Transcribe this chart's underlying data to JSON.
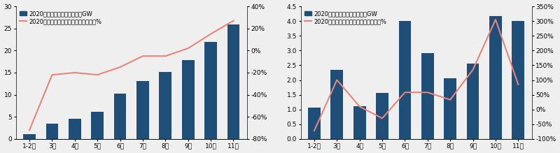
{
  "left": {
    "categories": [
      "1-2月",
      "3月",
      "4月",
      "5月",
      "6月",
      "7月",
      "8月",
      "9月",
      "10月",
      "11月"
    ],
    "bar_values": [
      1.1,
      3.5,
      4.5,
      6.1,
      10.2,
      13.1,
      15.1,
      17.8,
      22.0,
      25.9
    ],
    "line_values": [
      -0.72,
      -0.22,
      -0.2,
      -0.22,
      -0.15,
      -0.05,
      -0.05,
      0.02,
      0.15,
      0.27
    ],
    "bar_color": "#1F4E79",
    "line_color": "#E8857A",
    "bar_legend": "2020年光伏新增累计装机量，GW",
    "line_legend": "2020年光伏新增累计装机量同比增速，%",
    "ylim_bar": [
      0,
      30
    ],
    "ylim_line": [
      -0.8,
      0.4
    ],
    "yticks_bar": [
      0,
      5,
      10,
      15,
      20,
      25,
      30
    ],
    "yticks_line": [
      -0.8,
      -0.6,
      -0.4,
      -0.2,
      0.0,
      0.2,
      0.4
    ],
    "ytick_labels_line": [
      "-80%",
      "-60%",
      "-40%",
      "-20%",
      "0%",
      "20%",
      "40%"
    ]
  },
  "right": {
    "categories": [
      "1-2月",
      "3月",
      "4月",
      "5月",
      "6月",
      "7月",
      "8月",
      "9月",
      "10月",
      "11月"
    ],
    "bar_values": [
      1.07,
      2.35,
      1.12,
      1.57,
      4.0,
      2.92,
      2.07,
      2.55,
      4.18,
      4.0
    ],
    "line_values": [
      -0.72,
      1.0,
      0.1,
      -0.3,
      0.58,
      0.58,
      0.33,
      1.35,
      3.05,
      0.85
    ],
    "bar_color": "#1F4E79",
    "line_color": "#E8857A",
    "bar_legend": "2020年光伏每月新增装机量，GW",
    "line_legend": "2020年光伏每月新增装机量同比增速，%",
    "ylim_bar": [
      0,
      4.5
    ],
    "ylim_line": [
      -1.0,
      3.5
    ],
    "yticks_bar": [
      0,
      0.5,
      1.0,
      1.5,
      2.0,
      2.5,
      3.0,
      3.5,
      4.0,
      4.5
    ],
    "yticks_line": [
      -1.0,
      -0.5,
      0.0,
      0.5,
      1.0,
      1.5,
      2.0,
      2.5,
      3.0,
      3.5
    ],
    "ytick_labels_line": [
      "-100%",
      "-50%",
      "0%",
      "50%",
      "100%",
      "150%",
      "200%",
      "250%",
      "300%",
      "350%"
    ]
  },
  "background_color": "#EFEFEF",
  "plot_bg": "#EFEFEF",
  "fontsize": 6.5,
  "legend_fontsize": 6.0
}
